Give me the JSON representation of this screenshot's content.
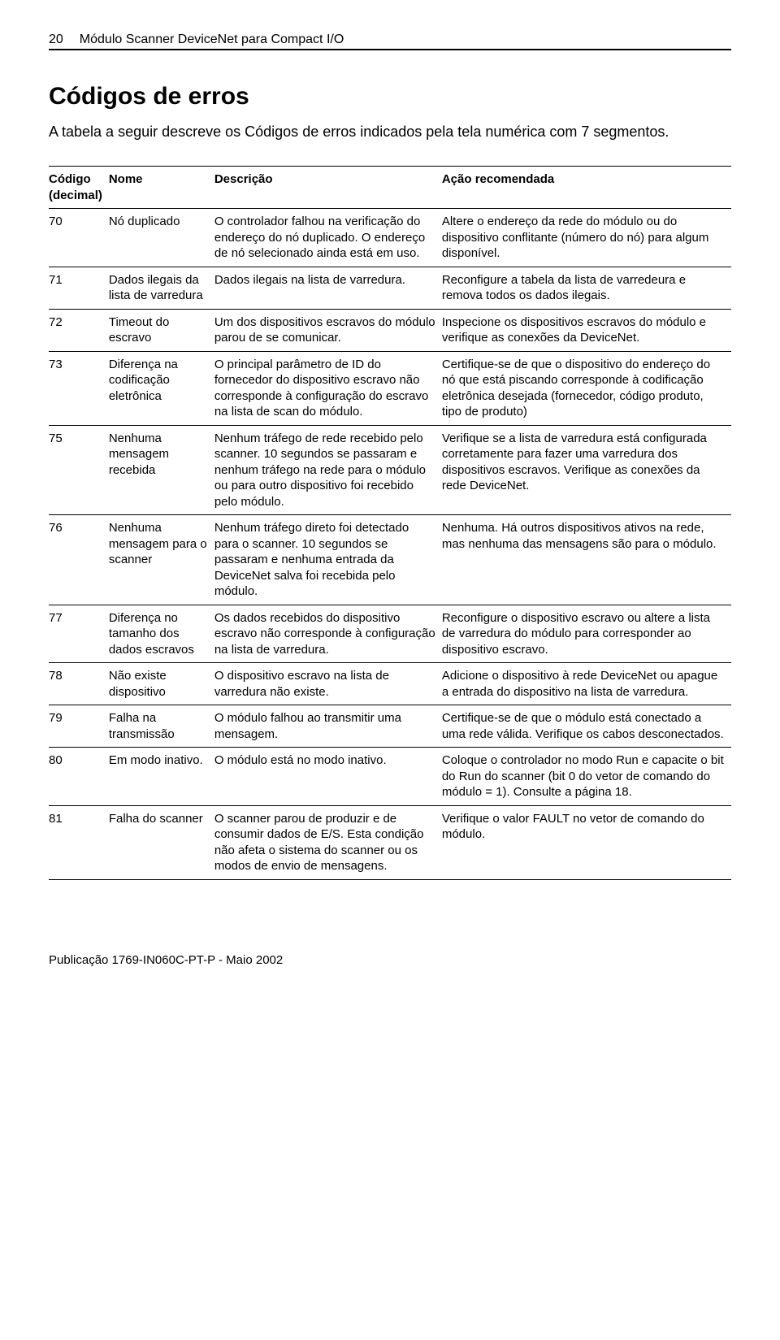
{
  "page_number": "20",
  "doc_title": "Módulo Scanner DeviceNet para Compact I/O",
  "heading": "Códigos de erros",
  "intro": "A tabela a seguir descreve os Códigos de erros indicados pela tela numérica com 7 segmentos.",
  "pub_line": "Publicação 1769-IN060C-PT-P - Maio 2002",
  "table": {
    "columns": [
      "Código (decimal)",
      "Nome",
      "Descrição",
      "Ação recomendada"
    ],
    "rows": [
      {
        "code": "70",
        "name": "Nó duplicado",
        "desc": "O controlador falhou na verificação do endereço do nó duplicado. O endereço de nó selecionado ainda está em uso.",
        "action": "Altere o endereço da rede do módulo ou do dispositivo conflitante (número do nó) para algum disponível."
      },
      {
        "code": "71",
        "name": "Dados ilegais da lista de varredura",
        "desc": "Dados ilegais na lista de varredura.",
        "action": "Reconfigure a tabela da lista de varredeura e remova todos os dados ilegais."
      },
      {
        "code": "72",
        "name": "Timeout do escravo",
        "desc": "Um dos dispositivos escravos do módulo parou de se comunicar.",
        "action": "Inspecione os dispositivos escravos do módulo e verifique as conexões da DeviceNet."
      },
      {
        "code": "73",
        "name": "Diferença na codificação eletrônica",
        "desc": "O principal parâmetro de ID do fornecedor do dispositivo escravo não corresponde à configuração do escravo na lista de scan do módulo.",
        "action": "Certifique-se de que o dispositivo do endereço do nó que está piscando corresponde à codificação eletrônica desejada (fornecedor, código produto, tipo de produto)"
      },
      {
        "code": "75",
        "name": "Nenhuma mensagem recebida",
        "desc": "Nenhum tráfego de rede recebido pelo scanner. 10 segundos se passaram e nenhum tráfego na rede para o módulo ou para outro dispositivo foi recebido pelo módulo.",
        "action": "Verifique se a lista de varredura está configurada corretamente para fazer uma varredura dos dispositivos escravos. Verifique as conexões da rede DeviceNet."
      },
      {
        "code": "76",
        "name": "Nenhuma mensagem para o scanner",
        "desc": "Nenhum tráfego direto foi detectado para o scanner. 10 segundos se passaram e nenhuma entrada da DeviceNet salva foi recebida pelo módulo.",
        "action": "Nenhuma. Há outros dispositivos ativos na rede, mas nenhuma das mensagens são para o módulo."
      },
      {
        "code": "77",
        "name": "Diferença no tamanho dos dados escravos",
        "desc": "Os dados recebidos do dispositivo escravo não corresponde à configuração na lista de varredura.",
        "action": "Reconfigure o dispositivo escravo ou altere a lista de varredura do módulo para corresponder ao dispositivo escravo."
      },
      {
        "code": "78",
        "name": "Não existe dispositivo",
        "desc": "O dispositivo escravo na lista de varredura não existe.",
        "action": "Adicione o dispositivo à rede DeviceNet ou apague a entrada do dispositivo na lista de varredura."
      },
      {
        "code": "79",
        "name": "Falha na transmissão",
        "desc": "O módulo falhou ao transmitir uma mensagem.",
        "action": "Certifique-se de que o módulo está conectado a uma rede válida. Verifique os cabos desconectados."
      },
      {
        "code": "80",
        "name": "Em modo inativo.",
        "desc": "O módulo está no modo inativo.",
        "action": "Coloque o controlador no modo Run e capacite o bit do Run do scanner (bit 0 do vetor de comando do módulo = 1). Consulte a página 18."
      },
      {
        "code": "81",
        "name": "Falha do scanner",
        "desc": "O scanner parou de produzir e de consumir dados de E/S. Esta condição não afeta o sistema do scanner ou os modos de envio de mensagens.",
        "action": "Verifique o valor FAULT no vetor de comando do módulo."
      }
    ]
  }
}
